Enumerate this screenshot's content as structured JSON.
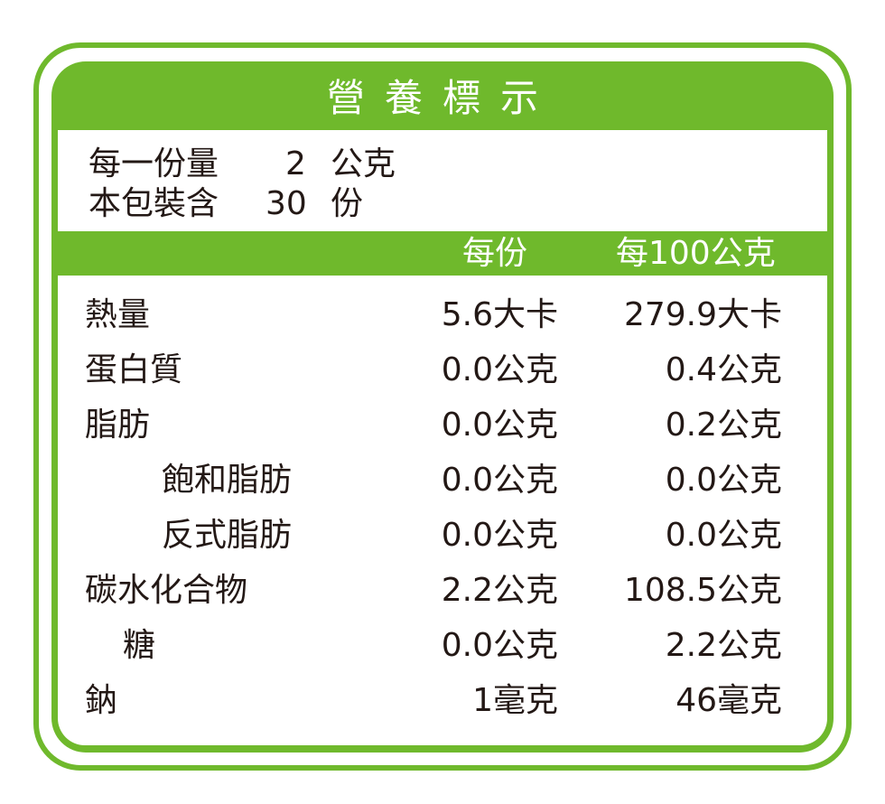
{
  "title": "營養標示",
  "serving": {
    "size_label": "每一份量",
    "size_value": "2",
    "size_unit": "公克",
    "count_label": "本包裝含",
    "count_value": "30",
    "count_unit": "份"
  },
  "columns": {
    "per_serving": "每份",
    "per_100": "每100公克"
  },
  "rows": [
    {
      "name": "熱量",
      "indent": 0,
      "per_serving": "5.6大卡",
      "per_100": "279.9大卡"
    },
    {
      "name": "蛋白質",
      "indent": 0,
      "per_serving": "0.0公克",
      "per_100": "0.4公克"
    },
    {
      "name": "脂肪",
      "indent": 0,
      "per_serving": "0.0公克",
      "per_100": "0.2公克"
    },
    {
      "name": "飽和脂肪",
      "indent": 2,
      "per_serving": "0.0公克",
      "per_100": "0.0公克"
    },
    {
      "name": "反式脂肪",
      "indent": 2,
      "per_serving": "0.0公克",
      "per_100": "0.0公克"
    },
    {
      "name": "碳水化合物",
      "indent": 0,
      "per_serving": "2.2公克",
      "per_100": "108.5公克"
    },
    {
      "name": "糖",
      "indent": 1,
      "per_serving": "0.0公克",
      "per_100": "2.2公克"
    },
    {
      "name": "鈉",
      "indent": 0,
      "per_serving": "1毫克",
      "per_100": "46毫克"
    }
  ],
  "colors": {
    "accent": "#6fb92c",
    "text": "#231815"
  }
}
